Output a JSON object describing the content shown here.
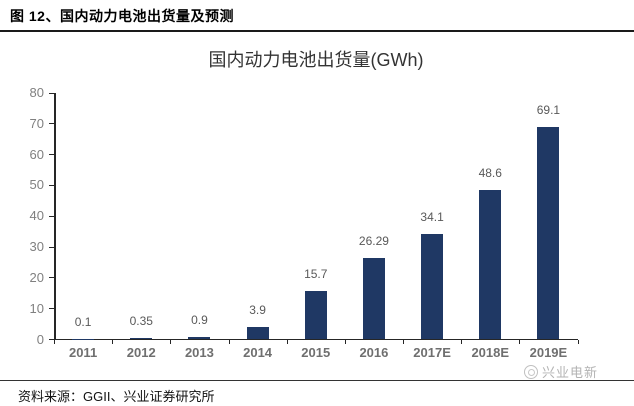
{
  "header": {
    "title": "图 12、国内动力电池出货量及预测"
  },
  "chart_data": {
    "type": "bar",
    "title": "国内动力电池出货量(GWh)",
    "categories": [
      "2011",
      "2012",
      "2013",
      "2014",
      "2015",
      "2016",
      "2017E",
      "2018E",
      "2019E"
    ],
    "values": [
      0.1,
      0.35,
      0.9,
      3.9,
      15.7,
      26.29,
      34.1,
      48.6,
      69.1
    ],
    "data_labels": [
      "0.1",
      "0.35",
      "0.9",
      "3.9",
      "15.7",
      "26.29",
      "34.1",
      "48.6",
      "69.1"
    ],
    "ylabel": "",
    "xlabel": "",
    "ylim": [
      0,
      80
    ],
    "ytick_step": 10,
    "grid": false,
    "legend": "none",
    "bar_color": "#1f3864"
  },
  "watermark": {
    "label": "兴业电新",
    "logo": "xingye-logo"
  },
  "footer": {
    "source": "资料来源：GGII、兴业证券研究所"
  },
  "colors": {
    "bar": "#1f3864",
    "axis": "#262626",
    "y_tick_label": "#808080",
    "x_tick_label": "#6f6f6f",
    "data_label": "#595959",
    "title": "#333333",
    "watermark": "#b3b3b3",
    "header_text": "#000000"
  }
}
